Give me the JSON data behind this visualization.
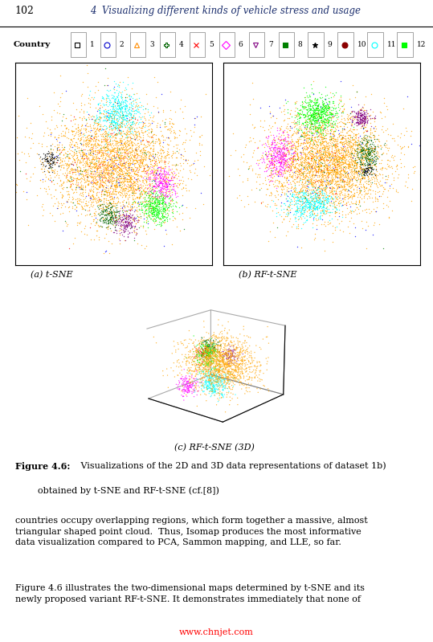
{
  "page_number": "102",
  "chapter_header": "4  Visualizing different kinds of vehicle stress and usage",
  "subplot_a_label": "(a) t-SNE",
  "subplot_b_label": "(b) RF-t-SNE",
  "subplot_c_label": "(c) RF-t-SNE (3D)",
  "figure_caption_bold": "Figure 4.6:",
  "figure_caption_text": " Visualizations of the 2D and 3D data representations of dataset 1b)\n        obtained by t-SNE and RF-t-SNE (cf.[8])",
  "body_text_1": "countries occupy overlapping regions, which form together a massive, almost\ntriangular shaped point cloud.  Thus, Isomap produces the most informative\ndata visualization compared to PCA, Sammon mapping, and LLE, so far.",
  "body_text_2": "Figure 4.6 illustrates the two-dimensional maps determined by t-SNE and its\nnewly proposed variant RF-t-SNE. It demonstrates immediately that none of",
  "watermark": "www.chnjet.com",
  "bg_color": "#ffffff"
}
